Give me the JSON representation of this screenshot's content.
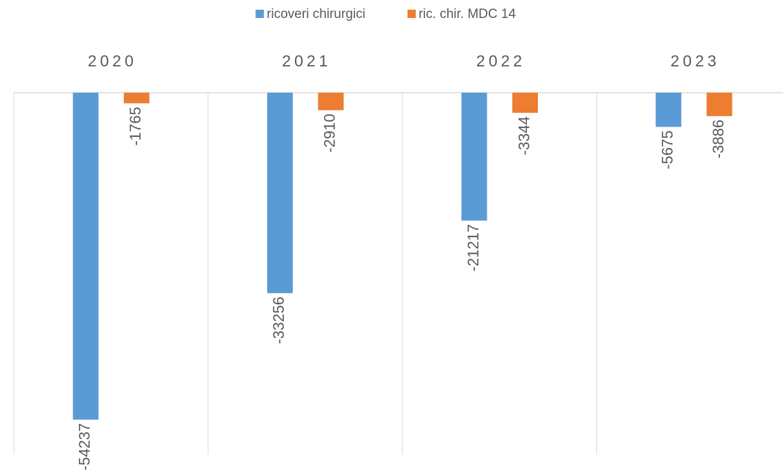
{
  "chart_data": {
    "type": "bar",
    "categories": [
      "2020",
      "2021",
      "2022",
      "2023"
    ],
    "series": [
      {
        "name": "ricoveri chirurgici",
        "color": "#5b9bd5",
        "values": [
          -54237,
          -33256,
          -21217,
          -5675
        ]
      },
      {
        "name": "ric. chir. MDC 14",
        "color": "#ed7d31",
        "values": [
          -1765,
          -2910,
          -3344,
          -3886
        ]
      }
    ],
    "ylim": [
      -60000,
      0
    ],
    "legend": "top"
  }
}
